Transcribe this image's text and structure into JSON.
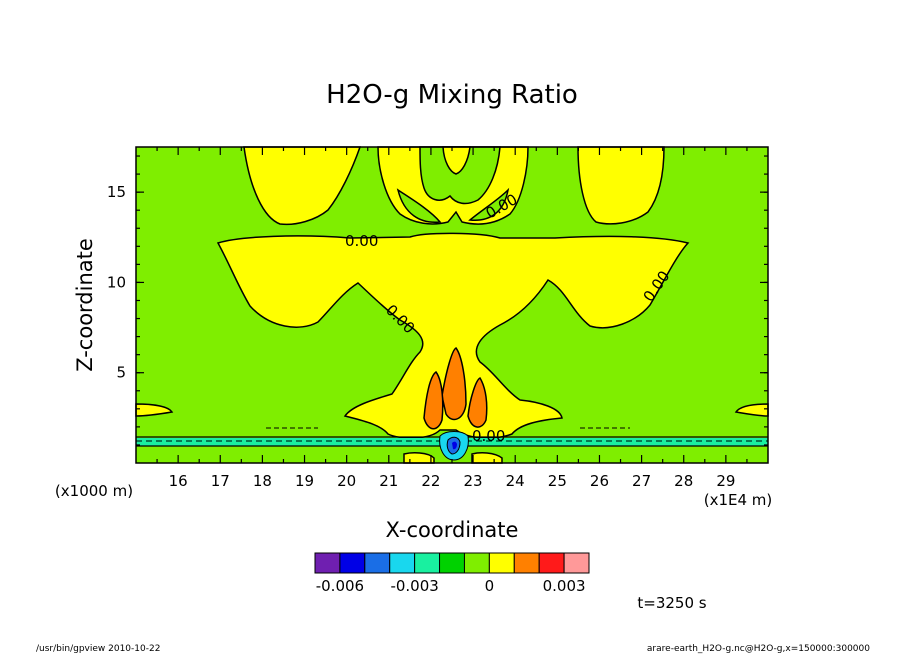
{
  "chart_data": {
    "type": "contour",
    "title": "H2O-g Mixing Ratio",
    "xlabel": "X-coordinate",
    "ylabel": "Z-coordinate",
    "x_unit_label": "(x1E4 m)",
    "y_unit_label": "(x1000 m)",
    "x_ticks": [
      "16",
      "17",
      "18",
      "19",
      "20",
      "21",
      "22",
      "23",
      "24",
      "25",
      "26",
      "27",
      "28",
      "29"
    ],
    "y_ticks": [
      "5",
      "10",
      "15"
    ],
    "xlim": [
      15.0,
      30.0
    ],
    "ylim": [
      0.0,
      17.5
    ],
    "contour_labels": [
      "0.00",
      "0.00",
      "0.00",
      "0.00",
      "0.00",
      "0.00"
    ],
    "colorbar": {
      "colors": [
        "#6f1fb0",
        "#0000e6",
        "#1a6ee6",
        "#19d7ee",
        "#19f0a0",
        "#00d200",
        "#7fee00",
        "#ffff00",
        "#ff8000",
        "#ff1a1a",
        "#ff9999"
      ],
      "tick_labels": [
        "-0.006",
        "-0.003",
        "0",
        "0.003"
      ],
      "tick_values": [
        -0.006,
        -0.003,
        0,
        0.003
      ]
    },
    "time_label": "t=3250 s"
  },
  "footer": {
    "left": "/usr/bin/gpview  2010-10-22",
    "right": "arare-earth_H2O-g.nc@H2O-g,x=150000:300000"
  }
}
